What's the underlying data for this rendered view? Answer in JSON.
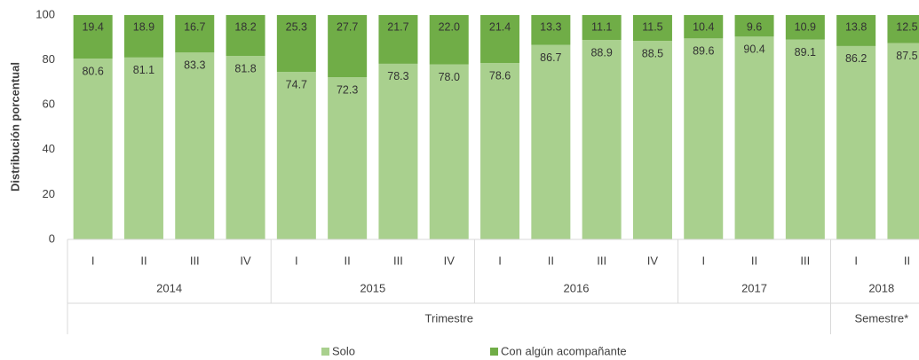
{
  "chart_data": {
    "type": "stacked_bar",
    "ylabel": "Distribución porcentual",
    "categories": [
      "I",
      "II",
      "III",
      "IV",
      "I",
      "II",
      "III",
      "IV",
      "I",
      "II",
      "III",
      "IV",
      "I",
      "II",
      "III",
      "I",
      "II"
    ],
    "groups": [
      {
        "name": "2014",
        "span": 4
      },
      {
        "name": "2015",
        "span": 4
      },
      {
        "name": "2016",
        "span": 4
      },
      {
        "name": "2017",
        "span": 3
      },
      {
        "name": "2018",
        "span": 2
      }
    ],
    "supergroups": [
      {
        "name": "Trimestre",
        "span": 15
      },
      {
        "name": "Semestre*",
        "span": 2
      }
    ],
    "series": [
      {
        "name": "Solo",
        "color": "#a9d08e",
        "values": [
          80.6,
          81.1,
          83.3,
          81.8,
          74.7,
          72.3,
          78.3,
          78.0,
          78.6,
          86.7,
          88.9,
          88.5,
          89.6,
          90.4,
          89.1,
          86.2,
          87.5
        ],
        "value_labels": [
          "80.6",
          "81.1",
          "83.3",
          "81.8",
          "74.7",
          "72.3",
          "78.3",
          "78.0",
          "78.6",
          "86.7",
          "88.9",
          "88.5",
          "89.6",
          "90.4",
          "89.1",
          "86.2",
          "87.5"
        ]
      },
      {
        "name": "Con algún acompañante",
        "color": "#70ad47",
        "values": [
          19.4,
          18.9,
          16.7,
          18.2,
          25.3,
          27.7,
          21.7,
          22.0,
          21.4,
          13.3,
          11.1,
          11.5,
          10.4,
          9.6,
          10.9,
          13.8,
          12.5
        ],
        "value_labels": [
          "19.4",
          "18.9",
          "16.7",
          "18.2",
          "25.3",
          "27.7",
          "21.7",
          "22.0",
          "21.4",
          "13.3",
          "11.1",
          "11.5",
          "10.4",
          "9.6",
          "10.9",
          "13.8",
          "12.5"
        ]
      }
    ],
    "ylim": [
      0,
      100
    ],
    "yticks": [
      0,
      20,
      40,
      60,
      80,
      100
    ],
    "grid": false,
    "legend": "bottom"
  }
}
